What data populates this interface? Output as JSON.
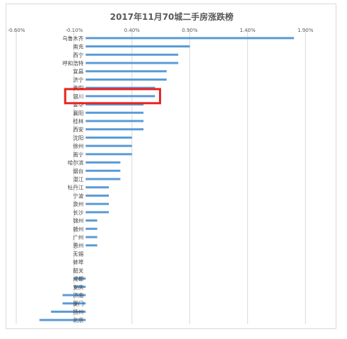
{
  "chart_data": {
    "type": "bar",
    "orientation": "horizontal",
    "title": "2017年11月70城二手房涨跌榜",
    "xlabel": "",
    "ylabel": "",
    "xlim": [
      -0.6,
      2.1
    ],
    "xticks": [
      "-0.60%",
      "-0.10%",
      "0.40%",
      "0.90%",
      "1.40%",
      "1.90%"
    ],
    "xtick_values": [
      -0.6,
      -0.1,
      0.4,
      0.9,
      1.4,
      1.9
    ],
    "grid": true,
    "legend": "none",
    "bar_color": "#5b9bd5",
    "highlight_color": "#e8231f",
    "highlighted_category": "银川",
    "categories": [
      "乌鲁木齐",
      "南充",
      "西宁",
      "呼和浩特",
      "宜昌",
      "济宁",
      "贵阳",
      "银川",
      "金华",
      "襄阳",
      "桂林",
      "西安",
      "沈阳",
      "徐州",
      "南宁",
      "哈尔滨",
      "烟台",
      "湛江",
      "牡丹江",
      "宁波",
      "泉州",
      "长沙",
      "锦州",
      "赣州",
      "广州",
      "惠州",
      "无锡",
      "蚌埠",
      "韶关",
      "成都",
      "安庆",
      "济南",
      "厦门",
      "扬州",
      "北京"
    ],
    "values": [
      1.8,
      0.9,
      0.8,
      0.8,
      0.7,
      0.7,
      0.6,
      0.6,
      0.5,
      0.5,
      0.5,
      0.5,
      0.4,
      0.4,
      0.4,
      0.3,
      0.3,
      0.3,
      0.2,
      0.2,
      0.2,
      0.2,
      0.1,
      0.1,
      0.1,
      0.1,
      0.0,
      0.0,
      0.0,
      -0.1,
      -0.1,
      -0.2,
      -0.2,
      -0.3,
      -0.4
    ]
  }
}
